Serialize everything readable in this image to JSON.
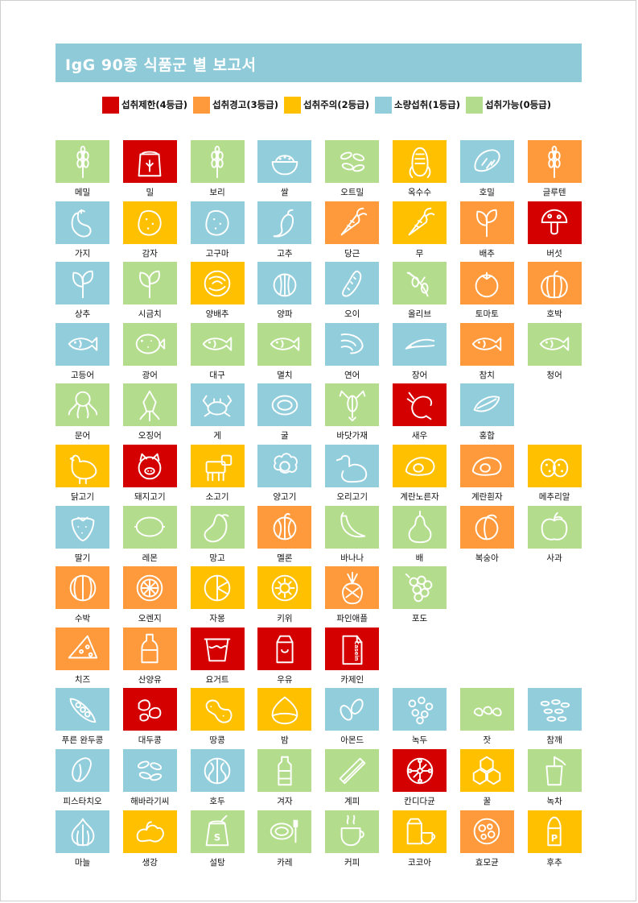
{
  "title": "IgG 90종 식품군 별 보고서",
  "colors": {
    "red": "#d40000",
    "orange": "#ff9a3c",
    "yellow": "#ffc000",
    "blue": "#92cddc",
    "green": "#b3dd8c"
  },
  "legend": [
    {
      "label": "섭취제한(4등급)",
      "color": "#d40000"
    },
    {
      "label": "섭취경고(3등급)",
      "color": "#ff9a3c"
    },
    {
      "label": "섭취주의(2등급)",
      "color": "#ffc000"
    },
    {
      "label": "소량섭취(1등급)",
      "color": "#92cddc"
    },
    {
      "label": "섭취가능(0등급)",
      "color": "#b3dd8c"
    }
  ],
  "rows": [
    [
      {
        "name": "메밀",
        "c": "green",
        "icon": "grain"
      },
      {
        "name": "밀",
        "c": "red",
        "icon": "flour"
      },
      {
        "name": "보리",
        "c": "green",
        "icon": "grain"
      },
      {
        "name": "쌀",
        "c": "blue",
        "icon": "bowl"
      },
      {
        "name": "오트밀",
        "c": "green",
        "icon": "seeds"
      },
      {
        "name": "옥수수",
        "c": "yellow",
        "icon": "corn"
      },
      {
        "name": "호밀",
        "c": "blue",
        "icon": "bread"
      },
      {
        "name": "글루텐",
        "c": "orange",
        "icon": "grain"
      }
    ],
    [
      {
        "name": "가지",
        "c": "blue",
        "icon": "eggplant"
      },
      {
        "name": "감자",
        "c": "yellow",
        "icon": "potato"
      },
      {
        "name": "고구마",
        "c": "blue",
        "icon": "potato"
      },
      {
        "name": "고추",
        "c": "blue",
        "icon": "pepper"
      },
      {
        "name": "당근",
        "c": "orange",
        "icon": "carrot"
      },
      {
        "name": "무",
        "c": "yellow",
        "icon": "carrot"
      },
      {
        "name": "배추",
        "c": "orange",
        "icon": "leaf"
      },
      {
        "name": "버섯",
        "c": "red",
        "icon": "mushroom"
      }
    ],
    [
      {
        "name": "상추",
        "c": "blue",
        "icon": "leaf"
      },
      {
        "name": "시금치",
        "c": "green",
        "icon": "leaf"
      },
      {
        "name": "양배추",
        "c": "yellow",
        "icon": "cabbage"
      },
      {
        "name": "양파",
        "c": "blue",
        "icon": "onion"
      },
      {
        "name": "오이",
        "c": "blue",
        "icon": "cucumber"
      },
      {
        "name": "올리브",
        "c": "green",
        "icon": "olive"
      },
      {
        "name": "토마토",
        "c": "orange",
        "icon": "tomato"
      },
      {
        "name": "호박",
        "c": "orange",
        "icon": "pumpkin"
      }
    ],
    [
      {
        "name": "고등어",
        "c": "blue",
        "icon": "fish"
      },
      {
        "name": "광어",
        "c": "green",
        "icon": "flatfish"
      },
      {
        "name": "대구",
        "c": "green",
        "icon": "fish"
      },
      {
        "name": "멸치",
        "c": "green",
        "icon": "fish"
      },
      {
        "name": "연어",
        "c": "blue",
        "icon": "salmon"
      },
      {
        "name": "장어",
        "c": "blue",
        "icon": "eel"
      },
      {
        "name": "참치",
        "c": "orange",
        "icon": "fish"
      },
      {
        "name": "청어",
        "c": "green",
        "icon": "fish"
      }
    ],
    [
      {
        "name": "문어",
        "c": "green",
        "icon": "octopus"
      },
      {
        "name": "오징어",
        "c": "green",
        "icon": "squid"
      },
      {
        "name": "게",
        "c": "blue",
        "icon": "crab"
      },
      {
        "name": "굴",
        "c": "blue",
        "icon": "oyster"
      },
      {
        "name": "바닷가재",
        "c": "green",
        "icon": "lobster"
      },
      {
        "name": "새우",
        "c": "red",
        "icon": "shrimp"
      },
      {
        "name": "홍합",
        "c": "blue",
        "icon": "mussel"
      }
    ],
    [
      {
        "name": "닭고기",
        "c": "yellow",
        "icon": "chicken"
      },
      {
        "name": "돼지고기",
        "c": "red",
        "icon": "pig"
      },
      {
        "name": "소고기",
        "c": "yellow",
        "icon": "cow"
      },
      {
        "name": "양고기",
        "c": "blue",
        "icon": "sheep"
      },
      {
        "name": "오리고기",
        "c": "blue",
        "icon": "duck"
      },
      {
        "name": "계란노른자",
        "c": "yellow",
        "icon": "egg"
      },
      {
        "name": "계란흰자",
        "c": "orange",
        "icon": "egg"
      },
      {
        "name": "메추리알",
        "c": "yellow",
        "icon": "quail"
      }
    ],
    [
      {
        "name": "딸기",
        "c": "blue",
        "icon": "strawberry"
      },
      {
        "name": "레몬",
        "c": "green",
        "icon": "lemon"
      },
      {
        "name": "망고",
        "c": "green",
        "icon": "mango"
      },
      {
        "name": "멜론",
        "c": "orange",
        "icon": "melon"
      },
      {
        "name": "바나나",
        "c": "green",
        "icon": "banana"
      },
      {
        "name": "배",
        "c": "green",
        "icon": "pear"
      },
      {
        "name": "복숭아",
        "c": "orange",
        "icon": "peach"
      },
      {
        "name": "사과",
        "c": "green",
        "icon": "apple"
      }
    ],
    [
      {
        "name": "수박",
        "c": "orange",
        "icon": "watermelon"
      },
      {
        "name": "오렌지",
        "c": "orange",
        "icon": "orange"
      },
      {
        "name": "자몽",
        "c": "yellow",
        "icon": "grapefruit"
      },
      {
        "name": "키위",
        "c": "yellow",
        "icon": "kiwi"
      },
      {
        "name": "파인애플",
        "c": "orange",
        "icon": "pineapple"
      },
      {
        "name": "포도",
        "c": "green",
        "icon": "grape"
      }
    ],
    [
      {
        "name": "치즈",
        "c": "orange",
        "icon": "cheese"
      },
      {
        "name": "산양유",
        "c": "orange",
        "icon": "bottle"
      },
      {
        "name": "요거트",
        "c": "red",
        "icon": "yogurt"
      },
      {
        "name": "우유",
        "c": "red",
        "icon": "milk"
      },
      {
        "name": "카제인",
        "c": "red",
        "icon": "casein",
        "text": "Casein"
      }
    ],
    [
      {
        "name": "푸른 완두콩",
        "c": "blue",
        "icon": "peas"
      },
      {
        "name": "대두콩",
        "c": "red",
        "icon": "beans"
      },
      {
        "name": "땅콩",
        "c": "yellow",
        "icon": "peanut"
      },
      {
        "name": "밤",
        "c": "yellow",
        "icon": "chestnut"
      },
      {
        "name": "아몬드",
        "c": "blue",
        "icon": "almond"
      },
      {
        "name": "녹두",
        "c": "blue",
        "icon": "dots"
      },
      {
        "name": "잣",
        "c": "green",
        "icon": "pinenut"
      },
      {
        "name": "참깨",
        "c": "blue",
        "icon": "sesame"
      }
    ],
    [
      {
        "name": "피스타치오",
        "c": "blue",
        "icon": "pistachio"
      },
      {
        "name": "해바라기씨",
        "c": "blue",
        "icon": "seeds"
      },
      {
        "name": "호두",
        "c": "blue",
        "icon": "walnut"
      },
      {
        "name": "겨자",
        "c": "green",
        "icon": "mustard"
      },
      {
        "name": "계피",
        "c": "green",
        "icon": "cinnamon"
      },
      {
        "name": "칸디다균",
        "c": "red",
        "icon": "candida"
      },
      {
        "name": "꿀",
        "c": "yellow",
        "icon": "honey"
      },
      {
        "name": "녹차",
        "c": "green",
        "icon": "tea"
      }
    ],
    [
      {
        "name": "마늘",
        "c": "blue",
        "icon": "garlic"
      },
      {
        "name": "생강",
        "c": "yellow",
        "icon": "ginger"
      },
      {
        "name": "설탕",
        "c": "green",
        "icon": "sugar",
        "text": "S"
      },
      {
        "name": "카레",
        "c": "green",
        "icon": "curry"
      },
      {
        "name": "커피",
        "c": "green",
        "icon": "coffee"
      },
      {
        "name": "코코아",
        "c": "yellow",
        "icon": "cocoa"
      },
      {
        "name": "효모균",
        "c": "orange",
        "icon": "yeast"
      },
      {
        "name": "후추",
        "c": "yellow",
        "icon": "pepper-shaker",
        "text": "P"
      }
    ]
  ]
}
